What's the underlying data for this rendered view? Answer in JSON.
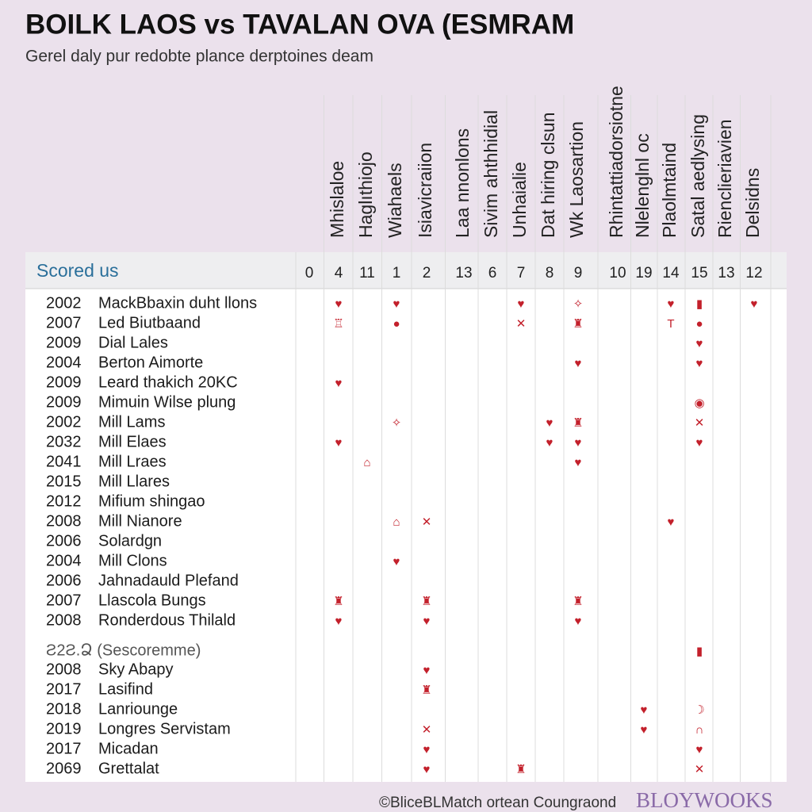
{
  "header": {
    "title": "BOILK LAOS vs TAVALAN OVA (ESMRAM",
    "subtitle": "Gerel daly pur redobte plance derptoines deam"
  },
  "table": {
    "corner": "Scored us",
    "columns": [
      {
        "number": "0"
      },
      {
        "header": "Mhislaloe",
        "number": "4"
      },
      {
        "header": "Haglıthiojo",
        "number": "11"
      },
      {
        "header": "Wiahaels",
        "number": "1"
      },
      {
        "header": "Isiavicraiion",
        "number": "2"
      },
      {
        "header": "Laa nnonlons",
        "number": "13"
      },
      {
        "header": "Sivim ahthhidial",
        "number": "6"
      },
      {
        "header": "Unhaialie",
        "number": "7"
      },
      {
        "header": "Dat hiring clsun",
        "number": "8"
      },
      {
        "header": "Wk Laosartion",
        "number": "9"
      },
      {
        "header": "Rhintattiadorsiotne",
        "number": "10"
      },
      {
        "header": "Nlelenglnl oc",
        "number": "19"
      },
      {
        "header": "Plaolmtaind",
        "number": "14"
      },
      {
        "header": "Satal aedlysing",
        "number": "15"
      },
      {
        "header": "Rienclieriavien",
        "number": "13"
      },
      {
        "header": "Delsidns",
        "number": "12"
      }
    ],
    "rows": [
      {
        "year": "2002",
        "name": "MackBbaxin duht llons",
        "cells": [
          null,
          "♥",
          null,
          "♥",
          null,
          null,
          null,
          "♥",
          null,
          "✧",
          null,
          null,
          "♥",
          "▮",
          null,
          "♥"
        ]
      },
      {
        "year": "2007",
        "name": "Led Biutbaand",
        "cells": [
          null,
          "♖",
          null,
          "●",
          null,
          null,
          null,
          "✕",
          null,
          "♜",
          null,
          null,
          "T",
          "●",
          null,
          null
        ]
      },
      {
        "year": "2009",
        "name": "Dial Lales",
        "cells": [
          null,
          null,
          null,
          null,
          null,
          null,
          null,
          null,
          null,
          null,
          null,
          null,
          null,
          "♥",
          null,
          null
        ]
      },
      {
        "year": "2004",
        "name": "Berton Aimorte",
        "cells": [
          null,
          null,
          null,
          null,
          null,
          null,
          null,
          null,
          null,
          "♥",
          null,
          null,
          null,
          "♥",
          null,
          null
        ]
      },
      {
        "year": "2009",
        "name": "Leard thakich 20KC",
        "cells": [
          null,
          "♥",
          null,
          null,
          null,
          null,
          null,
          null,
          null,
          null,
          null,
          null,
          null,
          null,
          null,
          null
        ]
      },
      {
        "year": "2009",
        "name": "Mimuin Wilse plung",
        "cells": [
          null,
          null,
          null,
          null,
          null,
          null,
          null,
          null,
          null,
          null,
          null,
          null,
          null,
          "◉",
          null,
          null
        ]
      },
      {
        "year": "2002",
        "name": "Mill Lams",
        "cells": [
          null,
          null,
          null,
          "✧",
          null,
          null,
          null,
          null,
          "♥",
          "♜",
          null,
          null,
          null,
          "✕",
          null,
          null
        ]
      },
      {
        "year": "2032",
        "name": "Mill Elaes",
        "cells": [
          null,
          "♥",
          null,
          null,
          null,
          null,
          null,
          null,
          "♥",
          "♥",
          null,
          null,
          null,
          "♥",
          null,
          null
        ]
      },
      {
        "year": "2041",
        "name": "Mill Lraes",
        "cells": [
          null,
          null,
          "⌂",
          null,
          null,
          null,
          null,
          null,
          null,
          "♥",
          null,
          null,
          null,
          null,
          null,
          null
        ]
      },
      {
        "year": "2015",
        "name": "Mill Llares",
        "cells": [
          null,
          null,
          null,
          null,
          null,
          null,
          null,
          null,
          null,
          null,
          null,
          null,
          null,
          null,
          null,
          null
        ]
      },
      {
        "year": "2012",
        "name": "Mifium shingao",
        "cells": [
          null,
          null,
          null,
          null,
          null,
          null,
          null,
          null,
          null,
          null,
          null,
          null,
          null,
          null,
          null,
          null
        ]
      },
      {
        "year": "2008",
        "name": "Mill Nianore",
        "cells": [
          null,
          null,
          null,
          "⌂",
          "✕",
          null,
          null,
          null,
          null,
          null,
          null,
          null,
          "♥",
          null,
          null,
          null
        ]
      },
      {
        "year": "2006",
        "name": "Solardgn",
        "cells": [
          null,
          null,
          null,
          null,
          null,
          null,
          null,
          null,
          null,
          null,
          null,
          null,
          null,
          null,
          null,
          null
        ]
      },
      {
        "year": "2004",
        "name": "Mill Clons",
        "cells": [
          null,
          null,
          null,
          "♥",
          null,
          null,
          null,
          null,
          null,
          null,
          null,
          null,
          null,
          null,
          null,
          null
        ]
      },
      {
        "year": "2006",
        "name": "Jahnadauld Plefand",
        "cells": [
          null,
          null,
          null,
          null,
          null,
          null,
          null,
          null,
          null,
          null,
          null,
          null,
          null,
          null,
          null,
          null
        ]
      },
      {
        "year": "2007",
        "name": "Llascola Bungs",
        "cells": [
          null,
          "♜",
          null,
          null,
          "♜",
          null,
          null,
          null,
          null,
          "♜",
          null,
          null,
          null,
          null,
          null,
          null
        ]
      },
      {
        "year": "2008",
        "name": "Ronderdous Thilald",
        "cells": [
          null,
          "♥",
          null,
          null,
          "♥",
          null,
          null,
          null,
          null,
          "♥",
          null,
          null,
          null,
          null,
          null,
          null
        ]
      }
    ],
    "section": {
      "label": "Ƨ2Ƨ.Ձ (Sescoremme)",
      "cells": [
        null,
        null,
        null,
        null,
        null,
        null,
        null,
        null,
        null,
        null,
        null,
        null,
        null,
        "▮",
        null,
        null
      ],
      "rows": [
        {
          "year": "2008",
          "name": "Sky Abapy",
          "cells": [
            null,
            null,
            null,
            null,
            "♥",
            null,
            null,
            null,
            null,
            null,
            null,
            null,
            null,
            null,
            null,
            null
          ]
        },
        {
          "year": "2017",
          "name": "Lasifind",
          "cells": [
            null,
            null,
            null,
            null,
            "♜",
            null,
            null,
            null,
            null,
            null,
            null,
            null,
            null,
            null,
            null,
            null
          ]
        },
        {
          "year": "2018",
          "name": "Lanriounge",
          "cells": [
            null,
            null,
            null,
            null,
            null,
            null,
            null,
            null,
            null,
            null,
            null,
            "♥",
            null,
            "☽",
            null,
            null
          ]
        },
        {
          "year": "2019",
          "name": "Longres Servistam",
          "cells": [
            null,
            null,
            null,
            null,
            "✕",
            null,
            null,
            null,
            null,
            null,
            null,
            "♥",
            null,
            "∩",
            null,
            null
          ]
        },
        {
          "year": "2017",
          "name": "Micadan",
          "cells": [
            null,
            null,
            null,
            null,
            "♥",
            null,
            null,
            null,
            null,
            null,
            null,
            null,
            null,
            "♥",
            null,
            null
          ]
        },
        {
          "year": "2069",
          "name": "Grettalat",
          "cells": [
            null,
            null,
            null,
            null,
            "♥",
            null,
            null,
            "♜",
            null,
            null,
            null,
            null,
            null,
            "✕",
            null,
            null
          ]
        }
      ]
    }
  },
  "footer": {
    "credit": "©BlicеBLMatch ortean Coungraond",
    "brand": "BLOYWOOKS"
  }
}
